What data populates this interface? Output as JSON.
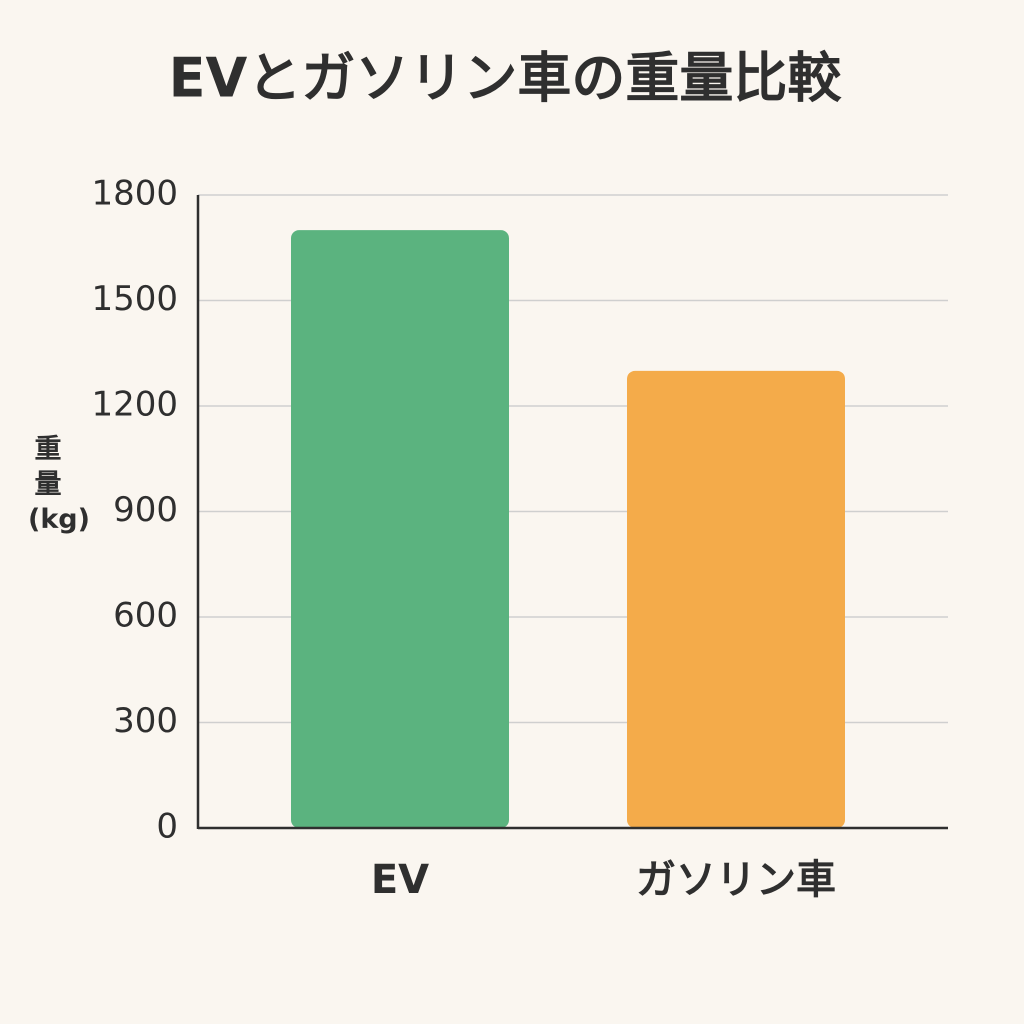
{
  "chart_data": {
    "type": "bar",
    "title": "EVとガソリン車の重量比較",
    "y_label": "重量(kg)",
    "categories": [
      "EV",
      "ガソリン車"
    ],
    "values": [
      1700,
      1300
    ],
    "colors": [
      "#5bb37f",
      "#f4ab4a"
    ],
    "ylim": [
      0,
      1800
    ],
    "yticks": [
      0,
      300,
      600,
      900,
      1200,
      1500,
      1800
    ],
    "grid": true
  }
}
